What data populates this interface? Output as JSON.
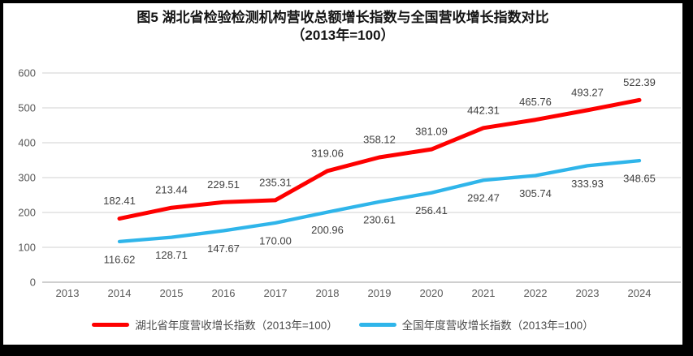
{
  "title": {
    "line1": "图5 湖北省检验检测机构营收总额增长指数与全国营收增长指数对比",
    "line2": "（2013年=100）"
  },
  "chart_data": {
    "type": "line",
    "categories": [
      "2013",
      "2014",
      "2015",
      "2016",
      "2017",
      "2018",
      "2019",
      "2020",
      "2021",
      "2022",
      "2023",
      "2024"
    ],
    "series": [
      {
        "name": "湖北省年度营收增长指数（2013年=100）",
        "color": "#FE0000",
        "values": [
          null,
          182.41,
          213.44,
          229.51,
          235.31,
          319.06,
          358.12,
          381.09,
          442.31,
          465.76,
          493.27,
          522.39
        ],
        "label_position": "above"
      },
      {
        "name": "全国年度营收增长指数（2013年=100）",
        "color": "#2FB5EA",
        "values": [
          null,
          116.62,
          128.71,
          147.67,
          170.0,
          200.96,
          230.61,
          256.41,
          292.47,
          305.74,
          333.93,
          348.65
        ],
        "label_position": "below"
      }
    ],
    "ylim": [
      0,
      600
    ],
    "yticks": [
      0,
      100,
      200,
      300,
      400,
      500,
      600
    ],
    "grid": true,
    "legend_position": "bottom",
    "data_label_decimals": 2,
    "colors": {
      "gridline": "#D9D9D9",
      "axis_line": "#BFBFBF",
      "tick_text": "#595959",
      "data_label_text": "#404040"
    }
  }
}
